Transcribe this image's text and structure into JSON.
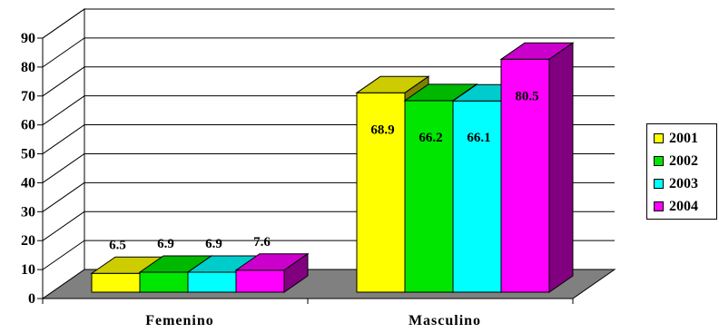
{
  "chart_data": {
    "type": "bar",
    "style": "3d-clustered-column",
    "categories": [
      "Femenino",
      "Masculino"
    ],
    "series": [
      {
        "name": "2001",
        "color": "#ffff00",
        "values": [
          6.5,
          68.9
        ]
      },
      {
        "name": "2002",
        "color": "#00e600",
        "values": [
          6.9,
          66.2
        ]
      },
      {
        "name": "2003",
        "color": "#00ffff",
        "values": [
          6.9,
          66.1
        ]
      },
      {
        "name": "2004",
        "color": "#ff00ff",
        "values": [
          7.6,
          80.5
        ]
      }
    ],
    "data_labels": [
      [
        "6.5",
        "6.9",
        "6.9",
        "7.6"
      ],
      [
        "68.9",
        "66.2",
        "66.1",
        "80.5"
      ]
    ],
    "yticks": [
      "0",
      "10",
      "20",
      "30",
      "40",
      "50",
      "60",
      "70",
      "80",
      "90"
    ],
    "ylim": [
      0,
      90
    ],
    "grid": true,
    "legend_position": "right",
    "floor_color": "#808080",
    "title": "",
    "xlabel": "",
    "ylabel": ""
  }
}
